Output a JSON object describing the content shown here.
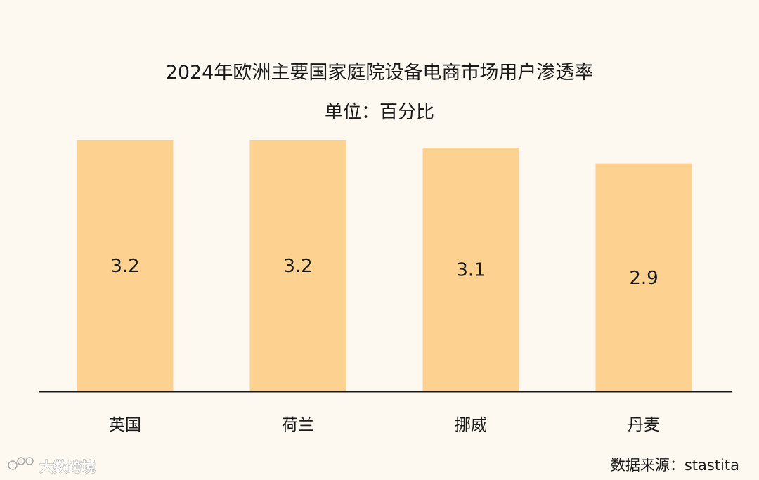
{
  "chart_data": {
    "type": "bar",
    "title": "2024年欧洲主要国家庭院设备电商市场用户渗透率",
    "subtitle": "单位：百分比",
    "categories": [
      "英国",
      "荷兰",
      "挪威",
      "丹麦"
    ],
    "values": [
      3.2,
      3.2,
      3.1,
      2.9
    ],
    "data_labels": [
      "3.2",
      "3.2",
      "3.1",
      "2.9"
    ],
    "ylim": [
      0,
      3.2
    ],
    "grid": false,
    "legend": "none",
    "bar_color": "#fdd291",
    "axis_color": "#1a1a1a"
  },
  "source": "数据来源：stastita",
  "watermark": "大数跨境"
}
